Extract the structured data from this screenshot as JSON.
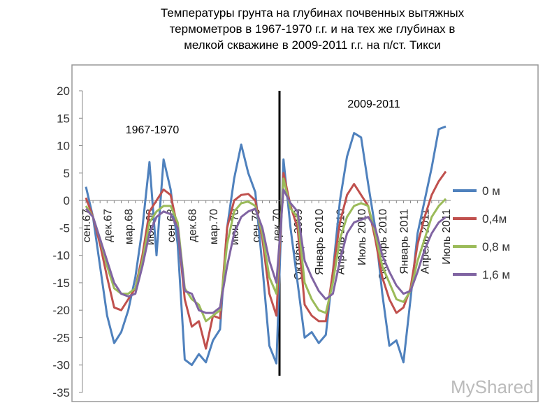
{
  "chart_data": {
    "type": "line",
    "title": [
      "Температуры грунта на глубинах почвенных вытяжных",
      "термометров в 1967-1970 г.г. и на тех же глубинах в",
      "мелкой скважине в 2009-2011 г.г. на п/ст. Тикси"
    ],
    "annotations": [
      "1967-1970",
      "2009-2011"
    ],
    "watermark": "MyShared",
    "categories": [
      "сен.67",
      null,
      null,
      "дек.67",
      null,
      null,
      "мар.68",
      null,
      null,
      "июн.68",
      null,
      null,
      "сен.68",
      null,
      null,
      "дек.68",
      null,
      null,
      "мар.70",
      null,
      null,
      "июн.70",
      null,
      null,
      "сен.70",
      null,
      null,
      "дек.70",
      null,
      null,
      "Октябрь 2009",
      null,
      null,
      "Январь 2010",
      null,
      null,
      "Апрель 2010",
      null,
      null,
      "Июль 2010",
      null,
      null,
      "Октябрь 2010",
      null,
      null,
      "Январь 2011",
      null,
      null,
      "Апрель 2011",
      null,
      null,
      "Июль 2011"
    ],
    "series": [
      {
        "name": "0 м",
        "color": "#4f81bd",
        "values": [
          2.5,
          -3,
          -12,
          -21,
          -26,
          -24,
          -20,
          -14,
          -5,
          7,
          -10,
          7.5,
          2,
          -8,
          -29,
          -30,
          -28,
          -29.5,
          -25.5,
          -23.5,
          -5,
          4,
          10.2,
          5,
          1.5,
          -12,
          -26.5,
          -29.7,
          7.5,
          -5,
          -15,
          -25,
          -24,
          -26,
          -24.5,
          -13,
          0,
          8,
          12.3,
          11.5,
          3,
          -5,
          -17,
          -26.5,
          -25.5,
          -29.5,
          -18,
          -6,
          0,
          6,
          13,
          13.5
        ]
      },
      {
        "name": "0,4м",
        "color": "#c0504d",
        "values": [
          0.5,
          -3,
          -8,
          -14,
          -19.5,
          -20,
          -18,
          -16,
          -10,
          -2,
          0,
          2,
          1,
          -5,
          -18,
          -23,
          -22,
          -27,
          -21,
          -21.5,
          -5,
          0,
          1,
          1.2,
          0,
          -7,
          -17,
          -21,
          5,
          -1,
          -5,
          -19,
          -21,
          -22,
          -22,
          -13,
          -4,
          1,
          3,
          1,
          -1,
          -7,
          -14,
          -18,
          -20.5,
          -19.5,
          -16,
          -8,
          -3,
          1,
          3.5,
          5.3
        ]
      },
      {
        "name": "0,8 м",
        "color": "#9bbb59",
        "values": [
          -1,
          -3,
          -7,
          -12,
          -16,
          -17,
          -17,
          -16,
          -11,
          -4,
          -2,
          -1,
          -1,
          -4,
          -16,
          -18,
          -19,
          -22,
          -21,
          -20,
          -8,
          -2,
          -0.5,
          -0.2,
          -1,
          -6,
          -14,
          -17,
          4,
          -1.5,
          -3,
          -15,
          -18,
          -20,
          -20.5,
          -15,
          -7,
          -3,
          -1,
          -0.5,
          -1,
          -6,
          -12,
          -15,
          -18,
          -18.5,
          -16.5,
          -11,
          -7,
          -3,
          -1,
          0.3
        ]
      },
      {
        "name": "1,6 м",
        "color": "#8064a2",
        "values": [
          -1.5,
          -3,
          -7,
          -11,
          -15,
          -17,
          -17.5,
          -17,
          -12,
          -6,
          -3,
          -2,
          -2.5,
          -5,
          -16.5,
          -17,
          -20,
          -20.5,
          -20.5,
          -19.5,
          -12,
          -6,
          -3,
          -2,
          -1.5,
          -5,
          -11,
          -15,
          2,
          -0.5,
          -2,
          -11,
          -14,
          -16.5,
          -18,
          -17,
          -11,
          -6,
          -4,
          -3.5,
          -3,
          -5,
          -10,
          -13,
          -15.5,
          -17,
          -16.5,
          -13,
          -9,
          -6,
          -4,
          -3
        ]
      }
    ],
    "ylim": [
      -35,
      20
    ],
    "yticks": [
      -35,
      -30,
      -25,
      -20,
      -15,
      -10,
      -5,
      0,
      5,
      10,
      15,
      20
    ],
    "grid": false
  }
}
